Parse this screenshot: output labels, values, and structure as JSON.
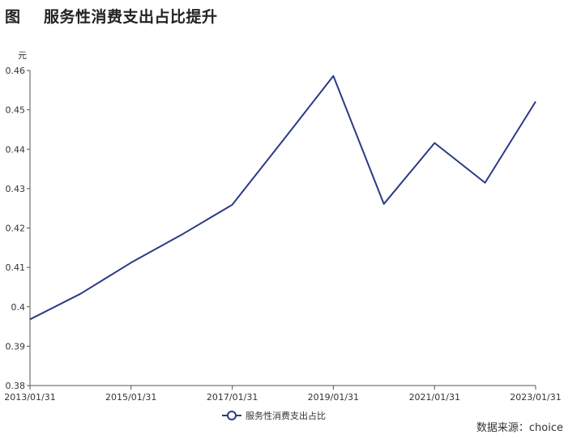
{
  "title": "图    服务性消费支出占比提升",
  "source": "数据来源：choice",
  "chart_data": {
    "type": "line",
    "title": "服务性消费支出占比提升",
    "ylabel": "元",
    "xlabel": "",
    "ylim": [
      0.38,
      0.46
    ],
    "y_ticks": [
      "0.38",
      "0.39",
      "0.4",
      "0.41",
      "0.42",
      "0.43",
      "0.44",
      "0.45",
      "0.46"
    ],
    "x_ticks": [
      "2013/01/31",
      "2015/01/31",
      "2017/01/31",
      "2019/01/31",
      "2021/01/31",
      "2023/01/31"
    ],
    "x": [
      "2013/01/31",
      "2014/01/31",
      "2015/01/31",
      "2016/01/31",
      "2017/01/31",
      "2018/01/31",
      "2019/01/31",
      "2020/01/31",
      "2021/01/31",
      "2022/01/31",
      "2023/01/31"
    ],
    "series": [
      {
        "name": "服务性消费支出占比",
        "color": "#2b3a86",
        "values": [
          0.3968,
          0.4033,
          0.4112,
          0.4183,
          0.4259,
          0.4422,
          0.4586,
          0.4261,
          0.4416,
          0.4315,
          0.4521
        ]
      }
    ],
    "legend_position": "bottom-center",
    "grid": false
  }
}
